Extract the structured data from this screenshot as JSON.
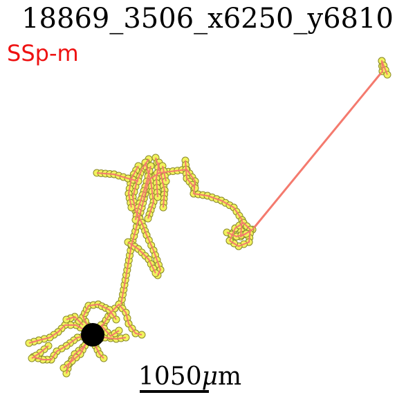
{
  "header": {
    "title": "18869_3506_x6250_y6810",
    "region": "SSp-m"
  },
  "scale_bar": {
    "value": "1050",
    "unit_prefix": "μ",
    "unit_suffix": "m"
  },
  "colors": {
    "region": "#ee1111",
    "edge": "#f47a6e",
    "node_fill": "#f2f25e",
    "node_stroke": "#8a8a2a",
    "soma": "#000000"
  }
}
